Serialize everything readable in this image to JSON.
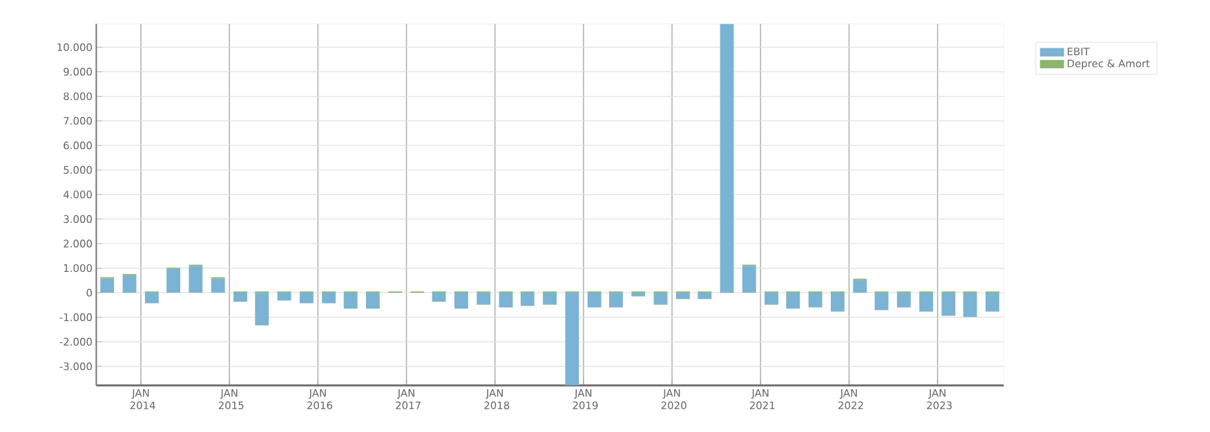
{
  "chart_data": {
    "type": "bar",
    "stacked": true,
    "x": [
      "2013-08-15",
      "2013-11-15",
      "2014-02-15",
      "2014-05-15",
      "2014-08-15",
      "2014-11-15",
      "2015-02-15",
      "2015-05-15",
      "2015-08-15",
      "2015-11-15",
      "2016-02-15",
      "2016-05-15",
      "2016-08-15",
      "2016-11-15",
      "2017-02-15",
      "2017-05-15",
      "2017-08-15",
      "2017-11-15",
      "2018-02-15",
      "2018-05-15",
      "2018-08-15",
      "2018-11-15",
      "2019-02-15",
      "2019-05-15",
      "2019-08-15",
      "2019-11-15",
      "2020-02-15",
      "2020-05-15",
      "2020-08-15",
      "2020-11-15",
      "2021-02-15",
      "2021-05-15",
      "2021-08-15",
      "2021-11-15",
      "2022-02-15",
      "2022-05-15",
      "2022-08-15",
      "2022-11-15",
      "2023-02-15",
      "2023-05-15",
      "2023-08-15"
    ],
    "series": [
      {
        "name": "EBIT",
        "color": "#7ab3d4",
        "values": [
          580,
          710,
          -430,
          970,
          1090,
          580,
          -370,
          -1330,
          -320,
          -430,
          -430,
          -650,
          -650,
          0,
          0,
          -370,
          -650,
          -490,
          -600,
          -540,
          -490,
          -3780,
          -600,
          -600,
          -150,
          -490,
          -260,
          -260,
          10950,
          1090,
          -490,
          -650,
          -600,
          -770,
          520,
          -710,
          -600,
          -770,
          -940,
          -990,
          -770
        ]
      },
      {
        "name": "Deprec & Amort",
        "color": "#8cb46c",
        "values": [
          50,
          50,
          50,
          50,
          50,
          50,
          50,
          50,
          50,
          50,
          50,
          50,
          50,
          50,
          50,
          50,
          50,
          50,
          50,
          50,
          50,
          50,
          50,
          50,
          50,
          50,
          50,
          50,
          null,
          50,
          50,
          50,
          50,
          50,
          50,
          50,
          50,
          50,
          50,
          50,
          50
        ]
      }
    ],
    "xlim": [
      "2013-07-01",
      "2023-10-01"
    ],
    "xticks": [
      {
        "value": "2014-01-01",
        "label": "JAN 2014"
      },
      {
        "value": "2015-01-01",
        "label": "JAN 2015"
      },
      {
        "value": "2016-01-01",
        "label": "JAN 2016"
      },
      {
        "value": "2017-01-01",
        "label": "JAN 2017"
      },
      {
        "value": "2018-01-01",
        "label": "JAN 2018"
      },
      {
        "value": "2019-01-01",
        "label": "JAN 2019"
      },
      {
        "value": "2020-01-01",
        "label": "JAN 2020"
      },
      {
        "value": "2021-01-01",
        "label": "JAN 2021"
      },
      {
        "value": "2022-01-01",
        "label": "JAN 2022"
      },
      {
        "value": "2023-01-01",
        "label": "JAN 2023"
      }
    ],
    "ylim": [
      -3780,
      10950
    ],
    "yticks": [
      {
        "value": -3000,
        "label": "-3.000"
      },
      {
        "value": -2000,
        "label": "-2.000"
      },
      {
        "value": -1000,
        "label": "-1.000"
      },
      0,
      {
        "value": 1000,
        "label": "1.000"
      },
      {
        "value": 2000,
        "label": "2.000"
      },
      {
        "value": 3000,
        "label": "3.000"
      },
      {
        "value": 4000,
        "label": "4.000"
      },
      {
        "value": 5000,
        "label": "5.000"
      },
      {
        "value": 6000,
        "label": "6.000"
      },
      {
        "value": 7000,
        "label": "7.000"
      },
      {
        "value": 8000,
        "label": "8.000"
      },
      {
        "value": 9000,
        "label": "9.000"
      },
      {
        "value": 10000,
        "label": "10.000"
      }
    ],
    "grid": true,
    "legend": "top right"
  }
}
